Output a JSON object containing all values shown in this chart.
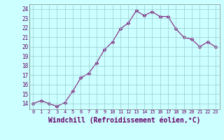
{
  "x": [
    0,
    1,
    2,
    3,
    4,
    5,
    6,
    7,
    8,
    9,
    10,
    11,
    12,
    13,
    14,
    15,
    16,
    17,
    18,
    19,
    20,
    21,
    22,
    23
  ],
  "y": [
    14.0,
    14.3,
    14.0,
    13.7,
    14.1,
    15.3,
    16.7,
    17.2,
    18.3,
    19.7,
    20.5,
    21.9,
    22.5,
    23.8,
    23.3,
    23.7,
    23.2,
    23.2,
    21.9,
    21.0,
    20.8,
    20.0,
    20.5,
    20.0
  ],
  "line_color": "#883388",
  "marker": "D",
  "marker_size": 2.5,
  "bg_color": "#ccffff",
  "grid_color": "#99cccc",
  "xlabel": "Windchill (Refroidissement éolien,°C)",
  "xlabel_fontsize": 7,
  "ylabel_ticks": [
    14,
    15,
    16,
    17,
    18,
    19,
    20,
    21,
    22,
    23,
    24
  ],
  "xlim": [
    -0.5,
    23.5
  ],
  "ylim": [
    13.4,
    24.5
  ],
  "xtick_labels": [
    "0",
    "1",
    "2",
    "3",
    "4",
    "5",
    "6",
    "7",
    "8",
    "9",
    "10",
    "11",
    "12",
    "13",
    "14",
    "15",
    "16",
    "17",
    "18",
    "19",
    "20",
    "21",
    "22",
    "23"
  ]
}
